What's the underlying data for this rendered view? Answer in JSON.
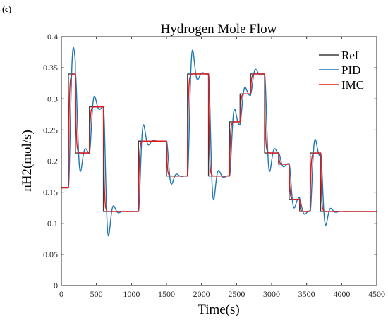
{
  "panel_label": "(c)",
  "chart_data": {
    "type": "line",
    "title": "Hydrogen Mole Flow",
    "xlabel": "Time(s)",
    "ylabel": "nH2(mol/s)",
    "xlim": [
      0,
      4500
    ],
    "ylim": [
      0,
      0.4
    ],
    "xticks": [
      0,
      500,
      1000,
      1500,
      2000,
      2500,
      3000,
      3500,
      4000,
      4500
    ],
    "yticks": [
      0,
      0.05,
      0.1,
      0.15,
      0.2,
      0.25,
      0.3,
      0.35,
      0.4
    ],
    "xtick_labels": [
      "0",
      "500",
      "1000",
      "1500",
      "2000",
      "2500",
      "3000",
      "3500",
      "4000",
      "4500"
    ],
    "ytick_labels": [
      "0",
      "0.05",
      "0.1",
      "0.15",
      "0.2",
      "0.25",
      "0.3",
      "0.35",
      "0.4"
    ],
    "grid": false,
    "legend_position": "top-right",
    "steps": [
      {
        "t": 0,
        "v": 0.157
      },
      {
        "t": 100,
        "v": 0.34
      },
      {
        "t": 200,
        "v": 0.213
      },
      {
        "t": 400,
        "v": 0.287
      },
      {
        "t": 600,
        "v": 0.119
      },
      {
        "t": 1100,
        "v": 0.232
      },
      {
        "t": 1500,
        "v": 0.176
      },
      {
        "t": 1800,
        "v": 0.34
      },
      {
        "t": 2100,
        "v": 0.176
      },
      {
        "t": 2400,
        "v": 0.263
      },
      {
        "t": 2550,
        "v": 0.308
      },
      {
        "t": 2700,
        "v": 0.34
      },
      {
        "t": 2900,
        "v": 0.213
      },
      {
        "t": 3100,
        "v": 0.195
      },
      {
        "t": 3250,
        "v": 0.138
      },
      {
        "t": 3400,
        "v": 0.119
      },
      {
        "t": 3550,
        "v": 0.213
      },
      {
        "t": 3700,
        "v": 0.119
      }
    ],
    "t_end": 4500,
    "series": [
      {
        "name": "Ref",
        "color": "#3c3c3c",
        "response": "step"
      },
      {
        "name": "PID",
        "color": "#1f77b4",
        "response": "overshoot"
      },
      {
        "name": "IMC",
        "color": "#e3191c",
        "response": "first-order"
      }
    ]
  }
}
